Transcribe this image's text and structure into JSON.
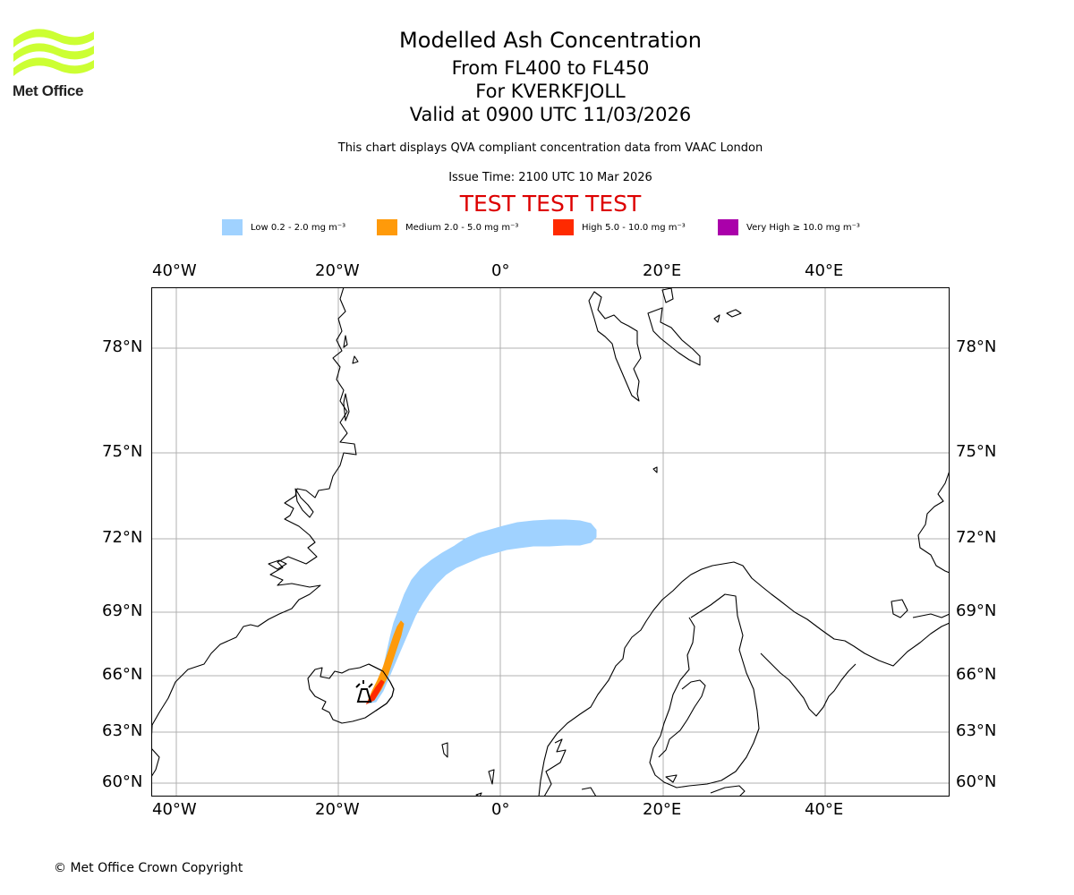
{
  "header": {
    "logo_text": "Met Office",
    "title": "Modelled Ash Concentration",
    "flight_levels": "From FL400 to FL450",
    "volcano": "For KVERKFJOLL",
    "valid_time": "Valid at 0900 UTC 11/03/2026",
    "description": "This chart displays QVA compliant concentration data from VAAC London",
    "issue_time": "Issue Time: 2100 UTC 10 Mar 2026",
    "test_banner": "TEST TEST TEST"
  },
  "colors": {
    "logo": "#ccff33",
    "low": "#a0d2ff",
    "medium": "#ff9a0a",
    "high": "#ff2a00",
    "very_high": "#aa00aa",
    "test_banner": "#dd0000",
    "grid": "#b0b0b0",
    "coast": "#000000"
  },
  "legend": [
    {
      "key": "low",
      "label": "Low 0.2 - 2.0 mg m⁻³"
    },
    {
      "key": "medium",
      "label": "Medium 2.0 - 5.0 mg m⁻³"
    },
    {
      "key": "high",
      "label": "High 5.0 - 10.0 mg m⁻³"
    },
    {
      "key": "very_high",
      "label": "Very High  ≥  10.0 mg m⁻³"
    }
  ],
  "map": {
    "lon_ticks": [
      "40°W",
      "20°W",
      "0°",
      "20°E",
      "40°E"
    ],
    "lat_ticks": [
      "78°N",
      "75°N",
      "72°N",
      "69°N",
      "66°N",
      "63°N",
      "60°N"
    ]
  },
  "footer": {
    "copyright": "© Met Office Crown Copyright"
  }
}
